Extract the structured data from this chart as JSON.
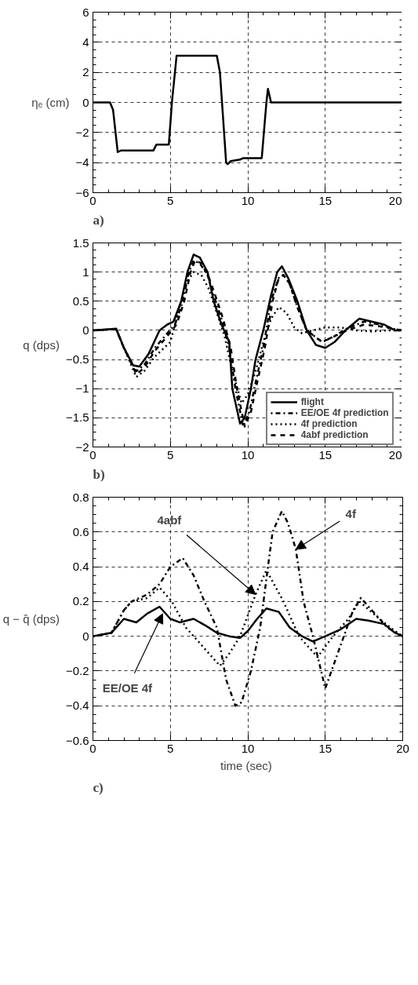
{
  "chart_data": [
    {
      "type": "line",
      "ylabel": "ηₑ (cm)",
      "xlim": [
        0,
        20
      ],
      "xticks": [
        0,
        5,
        10,
        15,
        20
      ],
      "ylim": [
        -6,
        6
      ],
      "yticks": [
        -6,
        -4,
        -2,
        0,
        2,
        4,
        6
      ],
      "grid": true,
      "line_style": "solid",
      "annotations": [
        "a)"
      ],
      "series": [
        {
          "color": "#000000",
          "x": [
            0,
            1.1,
            1.3,
            1.6,
            1.8,
            3.9,
            4.1,
            4.9,
            5.1,
            5.4,
            8.0,
            8.2,
            8.6,
            8.7,
            8.9,
            9.5,
            9.7,
            10.9,
            11.2,
            11.3,
            11.5,
            20
          ],
          "values": [
            0,
            0,
            -0.5,
            -3.3,
            -3.2,
            -3.2,
            -2.8,
            -2.8,
            0,
            3.1,
            3.1,
            2,
            -4,
            -4.1,
            -3.9,
            -3.8,
            -3.7,
            -3.7,
            0,
            0.9,
            0,
            0
          ]
        }
      ]
    },
    {
      "type": "line",
      "ylabel": "q (dps)",
      "xlim": [
        0,
        20
      ],
      "xticks": [
        0,
        5,
        10,
        15,
        20
      ],
      "ylim": [
        -2,
        1.5
      ],
      "yticks": [
        -2,
        -1.5,
        -1,
        -0.5,
        0,
        0.5,
        1,
        1.5
      ],
      "grid": true,
      "legend": "bottom right",
      "annotations": [
        "b)"
      ],
      "series": [
        {
          "name": "flight",
          "color": "#000000",
          "line_style": "solid",
          "x": [
            0,
            1.5,
            2.0,
            2.6,
            3.0,
            3.6,
            4.3,
            4.8,
            5.2,
            5.7,
            6.1,
            6.5,
            6.9,
            7.4,
            7.8,
            8.3,
            8.8,
            9.0,
            9.5,
            9.8,
            10.2,
            10.5,
            11.0,
            11.5,
            11.9,
            12.2,
            12.6,
            13.2,
            13.8,
            14.4,
            15.0,
            15.6,
            16.3,
            17.2,
            18.0,
            18.8,
            19.5,
            20
          ],
          "values": [
            0,
            0.03,
            -0.3,
            -0.6,
            -0.62,
            -0.4,
            0,
            0.1,
            0.15,
            0.5,
            1.0,
            1.3,
            1.25,
            1.0,
            0.5,
            0.1,
            -0.2,
            -1.0,
            -1.6,
            -1.5,
            -1.0,
            -0.5,
            0,
            0.6,
            1.0,
            1.1,
            0.9,
            0.5,
            0,
            -0.25,
            -0.3,
            -0.2,
            0,
            0.2,
            0.15,
            0.1,
            0,
            0
          ]
        },
        {
          "name": "EE/OE 4f prediction",
          "color": "#000000",
          "line_style": "dashdot",
          "x": [
            0,
            1.5,
            2.0,
            2.8,
            3.3,
            4.0,
            4.8,
            5.3,
            5.8,
            6.2,
            6.5,
            6.9,
            7.4,
            7.8,
            8.3,
            8.8,
            9.2,
            9.7,
            10.1,
            10.5,
            11.0,
            11.5,
            12.0,
            12.3,
            12.7,
            13.2,
            13.8,
            14.8,
            15.6,
            16.3,
            17.5,
            18.5,
            19.5,
            20
          ],
          "values": [
            0,
            0.02,
            -0.3,
            -0.7,
            -0.6,
            -0.3,
            -0.05,
            0.1,
            0.5,
            1.0,
            1.2,
            1.15,
            0.95,
            0.6,
            0.2,
            -0.3,
            -1.0,
            -1.65,
            -1.4,
            -0.9,
            -0.3,
            0.5,
            0.9,
            0.95,
            0.8,
            0.4,
            0.0,
            -0.2,
            -0.1,
            0.02,
            0.15,
            0.1,
            0.02,
            0
          ]
        },
        {
          "name": "4f prediction",
          "color": "#000000",
          "line_style": "dotted",
          "x": [
            0,
            1.5,
            2.0,
            2.8,
            3.3,
            4.0,
            5.0,
            5.5,
            6.0,
            6.5,
            7.0,
            7.5,
            8.0,
            8.5,
            9.0,
            9.6,
            10.0,
            10.5,
            11.0,
            11.5,
            12.0,
            12.5,
            13.0,
            13.5,
            14.5,
            15.0,
            16.0,
            17.0,
            18.0,
            19.0,
            20
          ],
          "values": [
            0,
            0.02,
            -0.3,
            -0.8,
            -0.7,
            -0.45,
            -0.2,
            0.3,
            0.8,
            1.0,
            0.95,
            0.7,
            0.3,
            -0.1,
            -0.7,
            -1.25,
            -1.1,
            -0.7,
            -0.2,
            0.2,
            0.4,
            0.3,
            0.05,
            -0.05,
            0.02,
            0.05,
            0.05,
            0.0,
            -0.02,
            0.0,
            0
          ]
        },
        {
          "name": "4abf prediction",
          "color": "#000000",
          "line_style": "dashed",
          "x": [
            0,
            1.5,
            2.0,
            2.8,
            3.3,
            4.0,
            4.8,
            5.4,
            5.9,
            6.3,
            6.6,
            7.0,
            7.5,
            7.9,
            8.4,
            8.9,
            9.3,
            9.8,
            10.2,
            10.6,
            11.1,
            11.6,
            12.0,
            12.3,
            12.7,
            13.2,
            13.8,
            14.8,
            15.6,
            16.4,
            17.5,
            18.5,
            19.5,
            20
          ],
          "values": [
            0,
            0.02,
            -0.3,
            -0.75,
            -0.65,
            -0.35,
            -0.1,
            0.1,
            0.5,
            1.0,
            1.2,
            1.15,
            0.9,
            0.6,
            0.2,
            -0.3,
            -1.0,
            -1.65,
            -1.4,
            -0.9,
            -0.3,
            0.5,
            0.9,
            0.95,
            0.8,
            0.4,
            0.0,
            -0.2,
            -0.1,
            0.0,
            0.1,
            0.07,
            0.02,
            0
          ]
        }
      ]
    },
    {
      "type": "line",
      "xlabel": "time  (sec)",
      "ylabel": "q − q̂ (dps)",
      "xlim": [
        0,
        20
      ],
      "xticks": [
        0,
        5,
        10,
        15,
        20
      ],
      "ylim": [
        -0.6,
        0.8
      ],
      "yticks": [
        -0.6,
        -0.4,
        -0.2,
        0,
        0.2,
        0.4,
        0.6,
        0.8
      ],
      "grid": true,
      "annotations": [
        {
          "text": "4abf",
          "x": 10.5,
          "y": 0.24
        },
        {
          "text": "4f",
          "x": 13.1,
          "y": 0.5
        },
        {
          "text": "EE/OE 4f",
          "x": 4.5,
          "y": 0.13
        },
        "c)"
      ],
      "series": [
        {
          "color": "#000000",
          "line_style": "solid",
          "x": [
            0,
            1.2,
            2.0,
            2.8,
            3.5,
            4.3,
            5.0,
            5.6,
            6.5,
            7.3,
            8.0,
            8.8,
            9.5,
            10.0,
            10.6,
            11.2,
            12.0,
            12.7,
            13.5,
            14.2,
            15.0,
            16.0,
            17.0,
            17.8,
            18.8,
            19.5,
            20
          ],
          "values": [
            0,
            0.02,
            0.1,
            0.08,
            0.13,
            0.17,
            0.1,
            0.08,
            0.1,
            0.06,
            0.02,
            0.0,
            -0.01,
            0.03,
            0.1,
            0.16,
            0.14,
            0.05,
            0.0,
            -0.03,
            0.0,
            0.04,
            0.1,
            0.09,
            0.07,
            0.02,
            0
          ]
        },
        {
          "color": "#000000",
          "line_style": "dotted",
          "x": [
            0,
            1.2,
            2.0,
            2.5,
            3.5,
            4.3,
            5.1,
            6.0,
            7.0,
            8.2,
            8.8,
            9.5,
            10.5,
            11.2,
            12.3,
            13.3,
            14.5,
            15.5,
            16.5,
            17.2,
            18.5,
            19.5,
            20
          ],
          "values": [
            0,
            0.02,
            0.15,
            0.2,
            0.22,
            0.28,
            0.2,
            0.05,
            -0.05,
            -0.17,
            -0.1,
            0.0,
            0.24,
            0.38,
            0.2,
            0.0,
            -0.12,
            0.0,
            0.1,
            0.2,
            0.1,
            0.03,
            0
          ]
        },
        {
          "color": "#000000",
          "line_style": "dashdot",
          "x": [
            0,
            1.2,
            2.0,
            2.5,
            3.5,
            4.3,
            5.0,
            5.8,
            6.5,
            7.2,
            8.0,
            8.6,
            9.2,
            9.6,
            10.2,
            10.8,
            11.3,
            11.6,
            12.2,
            12.6,
            13.1,
            13.6,
            14.2,
            15.0,
            15.8,
            16.8,
            17.3,
            18.0,
            19.0,
            20
          ],
          "values": [
            0,
            0.02,
            0.15,
            0.2,
            0.24,
            0.3,
            0.4,
            0.45,
            0.35,
            0.2,
            0.05,
            -0.25,
            -0.4,
            -0.38,
            -0.2,
            0.05,
            0.4,
            0.6,
            0.72,
            0.65,
            0.5,
            0.2,
            0.0,
            -0.3,
            -0.1,
            0.15,
            0.22,
            0.15,
            0.05,
            0
          ]
        }
      ]
    }
  ]
}
